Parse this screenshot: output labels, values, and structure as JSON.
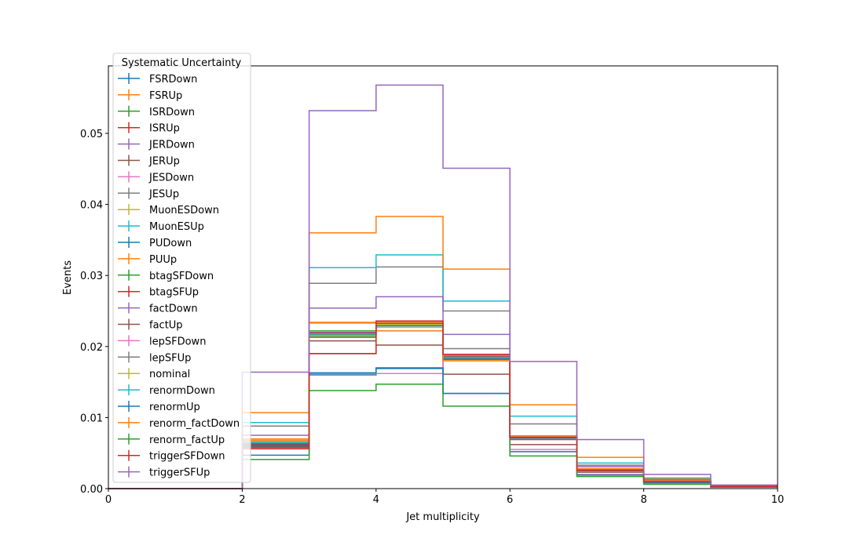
{
  "chart_data": {
    "type": "line",
    "subtype": "step-histogram",
    "title": "",
    "xlabel": "Jet multiplicity",
    "ylabel": "Events",
    "xlim": [
      0,
      10
    ],
    "ylim": [
      0,
      0.0595
    ],
    "x_ticks": [
      0,
      2,
      4,
      6,
      8,
      10
    ],
    "x_tick_labels": [
      "0",
      "2",
      "4",
      "6",
      "8",
      "10"
    ],
    "y_ticks": [
      0,
      0.01,
      0.02,
      0.03,
      0.04,
      0.05
    ],
    "y_tick_labels": [
      "0.00",
      "0.01",
      "0.02",
      "0.03",
      "0.04",
      "0.05"
    ],
    "grid": false,
    "legend": {
      "title": "Systematic Uncertainty",
      "position": "upper-left"
    },
    "bin_edges": [
      0,
      1,
      2,
      3,
      4,
      5,
      6,
      7,
      8,
      9,
      10
    ],
    "series": [
      {
        "name": "FSRDown",
        "color": "#1f77b4",
        "values": [
          0,
          0,
          0.0059,
          0.016,
          0.0169,
          0.0134,
          0.0073,
          0.0026,
          0.0011,
          0.0003
        ]
      },
      {
        "name": "FSRUp",
        "color": "#ff7f0e",
        "values": [
          0,
          0,
          0.0068,
          0.0233,
          0.0222,
          0.0182,
          0.0072,
          0.0028,
          0.0012,
          0.0004
        ]
      },
      {
        "name": "ISRDown",
        "color": "#2ca02c",
        "values": [
          0,
          0,
          0.0063,
          0.0222,
          0.0232,
          0.0185,
          0.0072,
          0.0026,
          0.001,
          0.0003
        ]
      },
      {
        "name": "ISRUp",
        "color": "#d62728",
        "values": [
          0,
          0,
          0.0061,
          0.0218,
          0.0234,
          0.0187,
          0.0073,
          0.0027,
          0.001,
          0.0003
        ]
      },
      {
        "name": "JERDown",
        "color": "#9467bd",
        "values": [
          0,
          0,
          0.0064,
          0.022,
          0.0233,
          0.0186,
          0.0074,
          0.0028,
          0.0011,
          0.0003
        ]
      },
      {
        "name": "JERUp",
        "color": "#8c564b",
        "values": [
          0,
          0,
          0.006,
          0.019,
          0.0202,
          0.0161,
          0.0062,
          0.0023,
          0.0009,
          0.0003
        ]
      },
      {
        "name": "JESDown",
        "color": "#e377c2",
        "values": [
          0,
          0,
          0.0063,
          0.0162,
          0.0162,
          0.0188,
          0.0055,
          0.002,
          0.0009,
          0.0002
        ]
      },
      {
        "name": "JESUp",
        "color": "#7f7f7f",
        "values": [
          0,
          0,
          0.0088,
          0.0289,
          0.0312,
          0.025,
          0.0091,
          0.0033,
          0.0013,
          0.0004
        ]
      },
      {
        "name": "MuonESDown",
        "color": "#bcbd22",
        "values": [
          0,
          0,
          0.0062,
          0.0214,
          0.0227,
          0.018,
          0.0071,
          0.0026,
          0.001,
          0.0003
        ]
      },
      {
        "name": "MuonESUp",
        "color": "#17becf",
        "values": [
          0,
          0,
          0.0093,
          0.0311,
          0.0329,
          0.0264,
          0.0102,
          0.0036,
          0.0014,
          0.0004
        ]
      },
      {
        "name": "PUDown",
        "color": "#1f77b4",
        "values": [
          0,
          0,
          0.0047,
          0.0163,
          0.017,
          0.0134,
          0.0052,
          0.0019,
          0.0008,
          0.0002
        ]
      },
      {
        "name": "PUUp",
        "color": "#ff7f0e",
        "values": [
          0,
          0,
          0.0107,
          0.036,
          0.0383,
          0.0309,
          0.0118,
          0.0044,
          0.0015,
          0.0005
        ]
      },
      {
        "name": "btagSFDown",
        "color": "#2ca02c",
        "values": [
          0,
          0,
          0.0062,
          0.0217,
          0.0232,
          0.0185,
          0.0072,
          0.0026,
          0.001,
          0.0003
        ]
      },
      {
        "name": "btagSFUp",
        "color": "#d62728",
        "values": [
          0,
          0,
          0.0062,
          0.0219,
          0.0233,
          0.0186,
          0.0073,
          0.0027,
          0.001,
          0.0003
        ]
      },
      {
        "name": "factDown",
        "color": "#9467bd",
        "values": [
          0,
          0,
          0.0075,
          0.0254,
          0.027,
          0.0217,
          0.0074,
          0.0031,
          0.0012,
          0.0004
        ]
      },
      {
        "name": "factUp",
        "color": "#8c564b",
        "values": [
          0,
          0,
          0.0058,
          0.0208,
          0.0231,
          0.0182,
          0.0069,
          0.0025,
          0.001,
          0.0003
        ]
      },
      {
        "name": "lepSFDown",
        "color": "#e377c2",
        "values": [
          0,
          0,
          0.0065,
          0.0215,
          0.023,
          0.0184,
          0.0071,
          0.0026,
          0.001,
          0.0003
        ]
      },
      {
        "name": "lepSFUp",
        "color": "#7f7f7f",
        "values": [
          0,
          0,
          0.0066,
          0.0216,
          0.0231,
          0.0197,
          0.0072,
          0.0027,
          0.001,
          0.0003
        ]
      },
      {
        "name": "nominal",
        "color": "#bcbd22",
        "values": [
          0,
          0,
          0.0064,
          0.0215,
          0.0231,
          0.0184,
          0.0072,
          0.0026,
          0.001,
          0.0003
        ]
      },
      {
        "name": "renormDown",
        "color": "#17becf",
        "values": [
          0,
          0,
          0.0065,
          0.0218,
          0.0234,
          0.0187,
          0.0073,
          0.0027,
          0.001,
          0.0003
        ]
      },
      {
        "name": "renormUp",
        "color": "#1f77b4",
        "values": [
          0,
          0,
          0.0063,
          0.0213,
          0.0229,
          0.0183,
          0.0071,
          0.0026,
          0.001,
          0.0003
        ]
      },
      {
        "name": "renorm_factDown",
        "color": "#ff7f0e",
        "values": [
          0,
          0,
          0.007,
          0.0234,
          0.0234,
          0.018,
          0.0073,
          0.0028,
          0.0011,
          0.0003
        ]
      },
      {
        "name": "renorm_factUp",
        "color": "#2ca02c",
        "values": [
          0,
          0,
          0.0041,
          0.0138,
          0.0147,
          0.0116,
          0.0046,
          0.0017,
          0.0006,
          0.0002
        ]
      },
      {
        "name": "triggerSFDown",
        "color": "#d62728",
        "values": [
          0,
          0,
          0.0056,
          0.019,
          0.0236,
          0.0189,
          0.0072,
          0.0026,
          0.001,
          0.0003
        ]
      },
      {
        "name": "triggerSFUp",
        "color": "#9467bd",
        "values": [
          0,
          0,
          0.0164,
          0.0532,
          0.0568,
          0.0451,
          0.0179,
          0.0069,
          0.002,
          0.0005
        ]
      }
    ]
  }
}
